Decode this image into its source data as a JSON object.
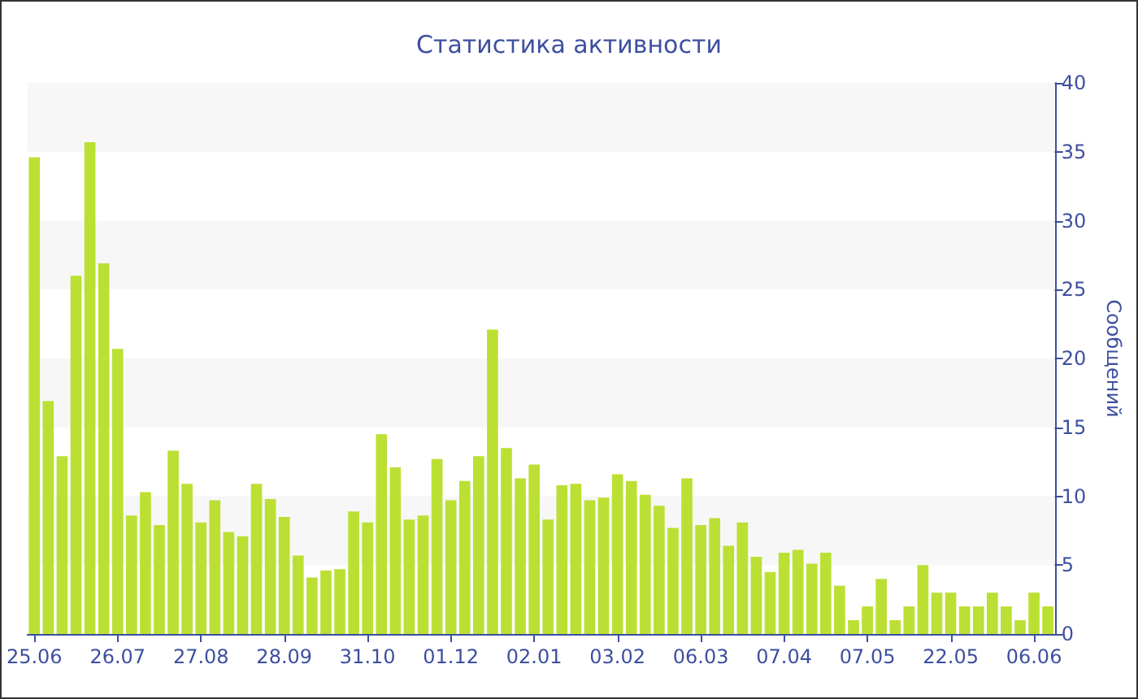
{
  "chart_data": {
    "type": "bar",
    "title": "Статистика активности",
    "ylabel": "Сообщений",
    "color": "#bbe033",
    "categories": [
      "25.06",
      null,
      null,
      null,
      null,
      null,
      "26.07",
      null,
      null,
      null,
      null,
      null,
      "27.08",
      null,
      null,
      null,
      null,
      null,
      "28.09",
      null,
      null,
      null,
      null,
      null,
      "31.10",
      null,
      null,
      null,
      null,
      null,
      "01.12",
      null,
      null,
      null,
      null,
      null,
      "02.01",
      null,
      null,
      null,
      null,
      null,
      "03.02",
      null,
      null,
      null,
      null,
      null,
      "06.03",
      null,
      null,
      null,
      null,
      null,
      "07.04",
      null,
      null,
      null,
      null,
      null,
      "07.05",
      null,
      null,
      null,
      null,
      null,
      "22.05",
      null,
      null,
      null,
      null,
      null,
      "06.06",
      null
    ],
    "values": [
      34.6,
      16.9,
      12.9,
      26,
      35.7,
      26.9,
      20.7,
      8.6,
      10.3,
      7.9,
      13.3,
      10.9,
      8.1,
      9.7,
      7.4,
      7.1,
      10.9,
      9.8,
      8.5,
      5.7,
      4.1,
      4.6,
      4.7,
      8.9,
      8.1,
      14.5,
      12.1,
      8.3,
      8.6,
      12.7,
      9.7,
      11.1,
      12.9,
      22.1,
      13.5,
      11.3,
      12.3,
      8.3,
      10.8,
      10.9,
      9.7,
      9.9,
      11.6,
      11.1,
      10.1,
      9.3,
      7.7,
      11.3,
      7.9,
      8.4,
      6.4,
      8.1,
      5.6,
      4.5,
      5.9,
      6.1,
      5.1,
      5.9,
      3.5,
      1,
      2,
      4,
      1,
      2,
      5,
      3,
      3,
      2,
      2,
      3,
      2,
      1,
      3,
      2
    ],
    "ylim": [
      0,
      40
    ],
    "yticks": [
      0,
      5,
      10,
      15,
      20,
      25,
      30,
      35,
      40
    ],
    "bands": [
      {
        "axis": "y",
        "from": 5,
        "to": 10,
        "color": "#f7f7f7"
      },
      {
        "axis": "y",
        "from": 15,
        "to": 20,
        "color": "#f7f7f7"
      },
      {
        "axis": "y",
        "from": 25,
        "to": 30,
        "color": "#f7f7f7"
      },
      {
        "axis": "y",
        "from": 35,
        "to": 40,
        "color": "#f7f7f7"
      }
    ]
  }
}
